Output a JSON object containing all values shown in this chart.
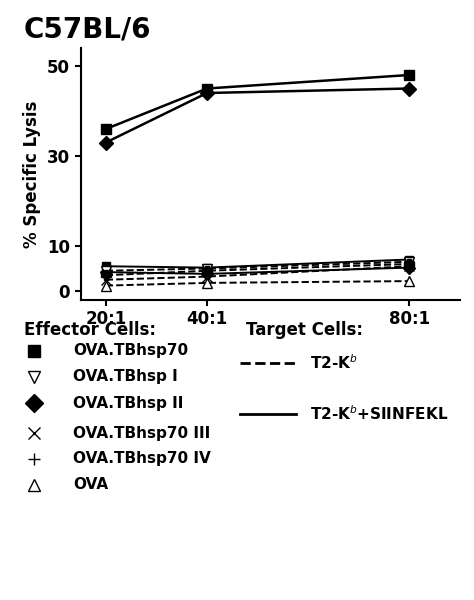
{
  "title": "C57BL/6",
  "ylabel": "% Specific Lysis",
  "x_values": [
    20,
    40,
    80
  ],
  "x_labels": [
    "20:1",
    "40:1",
    "80:1"
  ],
  "yticks": [
    0,
    10,
    30,
    50
  ],
  "ylim": [
    -2,
    54
  ],
  "xlim": [
    15,
    90
  ],
  "lines": [
    {
      "key": "OVA_TBhsp70_solid_high",
      "y": [
        36,
        45,
        48
      ],
      "linestyle": "solid",
      "marker": "s",
      "markersize": 7,
      "color": "black",
      "linewidth": 1.8,
      "markerfacecolor": "black",
      "markeredgecolor": "black"
    },
    {
      "key": "OVA_TBhsp_II_solid_high",
      "y": [
        33,
        44,
        45
      ],
      "linestyle": "solid",
      "marker": "D",
      "markersize": 7,
      "color": "black",
      "linewidth": 1.8,
      "markerfacecolor": "black",
      "markeredgecolor": "black"
    },
    {
      "key": "OVA_TBhsp70_solid_low",
      "y": [
        5.5,
        5.2,
        7.0
      ],
      "linestyle": "solid",
      "marker": "s",
      "markersize": 6,
      "color": "black",
      "linewidth": 1.4,
      "markerfacecolor": "black",
      "markeredgecolor": "black"
    },
    {
      "key": "OVA_TBhsp_II_solid_low",
      "y": [
        4.2,
        3.8,
        5.2
      ],
      "linestyle": "solid",
      "marker": "D",
      "markersize": 6,
      "color": "black",
      "linewidth": 1.4,
      "markerfacecolor": "black",
      "markeredgecolor": "black"
    },
    {
      "key": "OVA_TBhsp_I_dashed",
      "y": [
        4.5,
        5.0,
        6.5
      ],
      "linestyle": "dashed",
      "marker": "v",
      "markersize": 7,
      "color": "black",
      "linewidth": 1.4,
      "markerfacecolor": "white",
      "markeredgecolor": "black"
    },
    {
      "key": "OVA_TBhsp70_III_dashed",
      "y": [
        2.5,
        3.2,
        5.5
      ],
      "linestyle": "dashed",
      "marker": "x",
      "markersize": 7,
      "color": "black",
      "linewidth": 1.4,
      "markerfacecolor": "black",
      "markeredgecolor": "black"
    },
    {
      "key": "OVA_TBhsp70_IV_dashed",
      "y": [
        3.5,
        4.5,
        6.0
      ],
      "linestyle": "dashed",
      "marker": "P",
      "markersize": 7,
      "color": "black",
      "linewidth": 1.4,
      "markerfacecolor": "black",
      "markeredgecolor": "black"
    },
    {
      "key": "OVA_dashed",
      "y": [
        1.2,
        1.8,
        2.2
      ],
      "linestyle": "dashed",
      "marker": "^",
      "markersize": 7,
      "color": "black",
      "linewidth": 1.4,
      "markerfacecolor": "white",
      "markeredgecolor": "black"
    }
  ],
  "legend_effector_title": "Effector Cells:",
  "legend_target_title": "Target Cells:",
  "legend_items": [
    {
      "label": "OVA.TBhsp70",
      "marker": "s",
      "markerface": "black"
    },
    {
      "label": "OVA.TBhsp I",
      "marker": "v",
      "markerface": "white"
    },
    {
      "label": "OVA.TBhsp II",
      "marker": "D",
      "markerface": "black"
    },
    {
      "label": "OVA.TBhsp70 III",
      "marker": "x",
      "markerface": "black"
    },
    {
      "label": "OVA.TBhsp70 IV",
      "marker": "+",
      "markerface": "black"
    },
    {
      "label": "OVA",
      "marker": "^",
      "markerface": "white"
    }
  ],
  "target_items": [
    {
      "label": "T2-K$^b$",
      "linestyle": "dashed"
    },
    {
      "label": "T2-K$^b$+SIINFEKL",
      "linestyle": "solid"
    }
  ],
  "background_color": "white"
}
